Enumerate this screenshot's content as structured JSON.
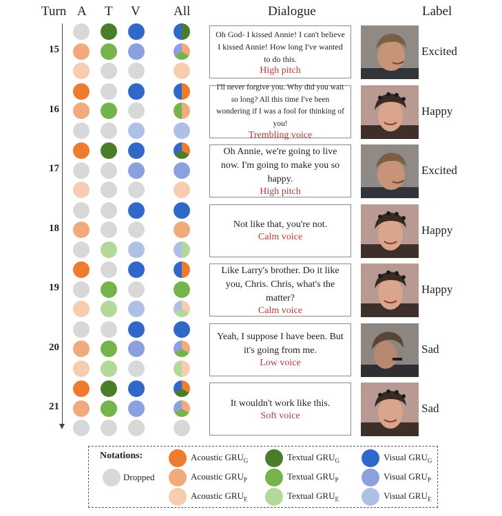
{
  "headers": {
    "turn": "Turn",
    "a": "A",
    "t": "T",
    "v": "V",
    "all": "All",
    "dialogue": "Dialogue",
    "label": "Label"
  },
  "colors": {
    "acoustic_g": "#ee7b2e",
    "acoustic_p": "#f2aa7c",
    "acoustic_e": "#f7cdb0",
    "textual_g": "#4a7d2a",
    "textual_p": "#74b44a",
    "textual_e": "#b2d99a",
    "visual_g": "#2f68c9",
    "visual_p": "#8aa0df",
    "visual_e": "#aec0e6",
    "dropped": "#d8d8d8"
  },
  "turns": [
    {
      "number": "15",
      "cells": [
        [
          "dropped",
          "textual_g",
          "visual_g"
        ],
        [
          "acoustic_p",
          "textual_p",
          "visual_p"
        ],
        [
          "acoustic_e",
          "dropped",
          "dropped"
        ]
      ],
      "all": [
        [
          "textual_g",
          "visual_g"
        ],
        [
          "acoustic_p",
          "textual_p",
          "visual_p"
        ],
        [
          "acoustic_e"
        ]
      ],
      "dialogue": "Oh God- I kissed Annie! I can't believe I kissed Annie!  How long I've wanted to do this.",
      "voice": "High pitch",
      "label": "Excited",
      "speaker": "male",
      "font": 12
    },
    {
      "number": "16",
      "cells": [
        [
          "acoustic_g",
          "dropped",
          "visual_g"
        ],
        [
          "acoustic_p",
          "textual_p",
          "dropped"
        ],
        [
          "dropped",
          "dropped",
          "visual_e"
        ]
      ],
      "all": [
        [
          "acoustic_g",
          "visual_g"
        ],
        [
          "acoustic_p",
          "textual_p"
        ],
        [
          "visual_e"
        ]
      ],
      "dialogue": "I'll never forgive you.  Why did you wait so long?  All this time I've been wondering if I was a fool for thinking of you!",
      "voice": "Trembling voice",
      "label": "Happy",
      "speaker": "female",
      "font": 11.5
    },
    {
      "number": "17",
      "cells": [
        [
          "acoustic_g",
          "textual_g",
          "visual_g"
        ],
        [
          "dropped",
          "dropped",
          "visual_p"
        ],
        [
          "acoustic_e",
          "dropped",
          "dropped"
        ]
      ],
      "all": [
        [
          "acoustic_g",
          "textual_g",
          "visual_g"
        ],
        [
          "visual_p"
        ],
        [
          "acoustic_e"
        ]
      ],
      "dialogue": "Oh Annie, we're going to live now.  I'm going to make you so happy.",
      "voice": "High pitch",
      "label": "Excited",
      "speaker": "male",
      "font": 14
    },
    {
      "number": "18",
      "cells": [
        [
          "dropped",
          "dropped",
          "visual_g"
        ],
        [
          "acoustic_p",
          "dropped",
          "dropped"
        ],
        [
          "dropped",
          "textual_e",
          "visual_e"
        ]
      ],
      "all": [
        [
          "visual_g"
        ],
        [
          "acoustic_p"
        ],
        [
          "textual_e",
          "visual_e"
        ]
      ],
      "dialogue": "Not like that, you're not.",
      "voice": "Calm voice",
      "label": "Happy",
      "speaker": "female",
      "font": 14
    },
    {
      "number": "19",
      "cells": [
        [
          "acoustic_g",
          "dropped",
          "visual_g"
        ],
        [
          "dropped",
          "textual_p",
          "dropped"
        ],
        [
          "acoustic_e",
          "textual_e",
          "visual_e"
        ]
      ],
      "all": [
        [
          "acoustic_g",
          "visual_g"
        ],
        [
          "textual_p"
        ],
        [
          "acoustic_e",
          "textual_e",
          "visual_e"
        ]
      ],
      "dialogue": "Like Larry's brother.  Do it like you, Chris.  Chris, what's the matter?",
      "voice": "Calm voice",
      "label": "Happy",
      "speaker": "female",
      "font": 14
    },
    {
      "number": "20",
      "cells": [
        [
          "dropped",
          "dropped",
          "visual_g"
        ],
        [
          "acoustic_p",
          "textual_p",
          "visual_p"
        ],
        [
          "acoustic_e",
          "textual_e",
          "dropped"
        ]
      ],
      "all": [
        [
          "visual_g"
        ],
        [
          "acoustic_p",
          "textual_p",
          "visual_p"
        ],
        [
          "acoustic_e",
          "textual_e"
        ]
      ],
      "dialogue": "Yeah, I suppose I have been.  But it's going from me.",
      "voice": "Low voice",
      "label": "Sad",
      "speaker": "male_down",
      "font": 14
    },
    {
      "number": "21",
      "cells": [
        [
          "acoustic_g",
          "textual_g",
          "visual_g"
        ],
        [
          "acoustic_p",
          "textual_p",
          "visual_p"
        ],
        [
          "dropped",
          "dropped",
          "dropped"
        ]
      ],
      "all": [
        [
          "acoustic_g",
          "textual_g",
          "visual_g"
        ],
        [
          "acoustic_p",
          "textual_p",
          "visual_p"
        ],
        []
      ],
      "dialogue": "It wouldn't work like this.",
      "voice": "Soft voice",
      "label": "Sad",
      "speaker": "female",
      "font": 14
    }
  ],
  "legend": {
    "title": "Notations:",
    "dropped": "Dropped",
    "acoustic": "Acoustic GRU",
    "textual": "Textual GRU",
    "visual": "Visual GRU",
    "sub_g": "G",
    "sub_p": "P",
    "sub_e": "E"
  }
}
